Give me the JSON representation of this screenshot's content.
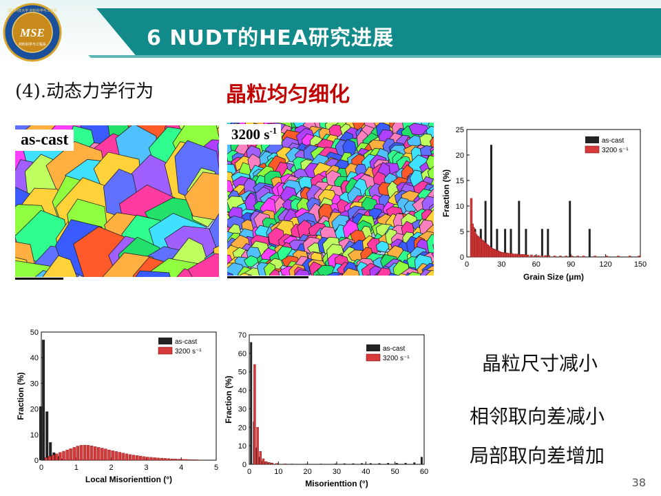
{
  "header": {
    "logo_text": "MSE",
    "logo_ring_text": "国防科技大学 材料科学与工程系",
    "logo_bottom_text": "材料科学与工程系",
    "title": "6 NUDT的HEA研究进展"
  },
  "subtitle": "(4).动态力学行为",
  "highlight": "晶粒均匀细化",
  "images": {
    "as_cast_label": "as-cast",
    "rate_label_base": "3200 s",
    "rate_label_exp": "-1"
  },
  "side_text": {
    "line1": "晶粒尺寸减小",
    "line2": "相邻取向差减小",
    "line3": "局部取向差增加"
  },
  "page_number": "38",
  "colors": {
    "teal": "#128a8a",
    "title_red": "#c00000",
    "as_cast_bar": "#222222",
    "rate_bar": "#d63a3a"
  },
  "chart_data": [
    {
      "id": "grain_size",
      "type": "bar",
      "xlabel": "Grain Size (μm)",
      "ylabel": "Fraction (%)",
      "xlim": [
        0,
        150
      ],
      "ylim": [
        0,
        25
      ],
      "xticks": [
        0,
        30,
        60,
        90,
        120,
        150
      ],
      "yticks": [
        0,
        5,
        10,
        15,
        20,
        25
      ],
      "legend_position": "top-right",
      "series": [
        {
          "name": "as-cast",
          "x": [
            8,
            13,
            17,
            22,
            27,
            34,
            39,
            46,
            52,
            66,
            71,
            90,
            107
          ],
          "values": [
            5.5,
            5.5,
            11,
            22,
            5.5,
            5.5,
            5.5,
            11,
            5.5,
            5.5,
            5.5,
            11,
            5.5
          ]
        },
        {
          "name": "3200 s⁻¹",
          "x": [
            3,
            4,
            5,
            6,
            7,
            8,
            9,
            10,
            11,
            12,
            13,
            14,
            15,
            16,
            17,
            18,
            19,
            20,
            21,
            22,
            23,
            24,
            25,
            26,
            27,
            28,
            29,
            30,
            32,
            34,
            36,
            38,
            40,
            42,
            44,
            46,
            48,
            50,
            52,
            55,
            58,
            61,
            64,
            67,
            70,
            75,
            80,
            85,
            90,
            95,
            100,
            110,
            120,
            130,
            140,
            148
          ],
          "values": [
            11.5,
            6.5,
            5.8,
            5,
            4.5,
            4.2,
            4,
            3.8,
            3.6,
            3.4,
            3.2,
            3,
            2.8,
            2.6,
            2.4,
            2.2,
            2,
            1.9,
            1.7,
            1.6,
            1.5,
            1.4,
            1.3,
            1.2,
            1.1,
            1,
            0.9,
            0.9,
            0.8,
            0.8,
            0.7,
            0.7,
            0.6,
            0.6,
            0.5,
            0.5,
            0.5,
            0.4,
            0.4,
            0.4,
            0.3,
            0.3,
            0.3,
            0.3,
            0.3,
            0.2,
            0.2,
            0.2,
            0.2,
            0.2,
            0.2,
            0.2,
            0.2,
            0.2,
            0.2,
            0.2
          ]
        }
      ]
    },
    {
      "id": "local_misorientation",
      "type": "bar",
      "xlabel": "Local Misorienttion (°)",
      "ylabel": "Fraction (%)",
      "xlim": [
        0,
        5
      ],
      "ylim": [
        0,
        50
      ],
      "xticks": [
        0,
        1,
        2,
        3,
        4,
        5
      ],
      "yticks": [
        0,
        10,
        20,
        30,
        40,
        50
      ],
      "legend_position": "top-right",
      "series": [
        {
          "name": "as-cast",
          "x": [
            0.02,
            0.1,
            0.2,
            0.3,
            0.4,
            0.5,
            0.6
          ],
          "values": [
            21,
            47,
            19,
            7,
            3,
            1.5,
            0.5
          ]
        },
        {
          "name": "3200 s⁻¹",
          "x": [
            0.1,
            0.2,
            0.3,
            0.4,
            0.5,
            0.6,
            0.7,
            0.8,
            0.9,
            1.0,
            1.1,
            1.2,
            1.3,
            1.4,
            1.5,
            1.6,
            1.7,
            1.8,
            1.9,
            2.0,
            2.1,
            2.2,
            2.3,
            2.4,
            2.5,
            2.6,
            2.7,
            2.8,
            2.9,
            3.0,
            3.1,
            3.2,
            3.3,
            3.4,
            3.5,
            3.6,
            3.7,
            3.8,
            3.9,
            4.0,
            4.1,
            4.2,
            4.3,
            4.4,
            4.5
          ],
          "values": [
            1,
            1.5,
            2,
            2.5,
            3,
            3.5,
            4,
            4.5,
            5,
            5.5,
            5.8,
            5.9,
            5.8,
            5.6,
            5.3,
            5,
            4.7,
            4.4,
            4,
            3.7,
            3.4,
            3.1,
            2.8,
            2.5,
            2.2,
            2,
            1.8,
            1.6,
            1.4,
            1.2,
            1.1,
            1,
            0.9,
            0.8,
            0.7,
            0.6,
            0.5,
            0.45,
            0.4,
            0.35,
            0.3,
            0.25,
            0.2,
            0.15,
            0.1
          ]
        }
      ]
    },
    {
      "id": "misorientation",
      "type": "bar",
      "xlabel": "Misorienttion (°)",
      "ylabel": "Fraction (%)",
      "xlim": [
        0,
        60
      ],
      "ylim": [
        0,
        70
      ],
      "xticks": [
        0,
        10,
        20,
        30,
        40,
        50,
        60
      ],
      "yticks": [
        0,
        10,
        20,
        30,
        40,
        50,
        60,
        70
      ],
      "legend_position": "top-right",
      "series": [
        {
          "name": "as-cast",
          "x": [
            1,
            2,
            3,
            4,
            5,
            6,
            7,
            8,
            10,
            15,
            20,
            25,
            30,
            33,
            36,
            39,
            42,
            45,
            48,
            51,
            54,
            57,
            59.5
          ],
          "values": [
            66,
            23,
            9,
            4,
            2,
            1.5,
            1,
            0.8,
            0.5,
            0.3,
            0.3,
            0.3,
            0.4,
            0.5,
            0.5,
            0.6,
            0.6,
            0.6,
            0.7,
            0.7,
            0.8,
            1,
            4
          ]
        },
        {
          "name": "3200 s⁻¹",
          "x": [
            1.5,
            2.5,
            3.5,
            4.5,
            5.5,
            6.5,
            7.5,
            9,
            12
          ],
          "values": [
            54,
            20,
            7,
            3,
            1.5,
            1,
            0.7,
            0.5,
            0.3
          ]
        }
      ]
    }
  ]
}
